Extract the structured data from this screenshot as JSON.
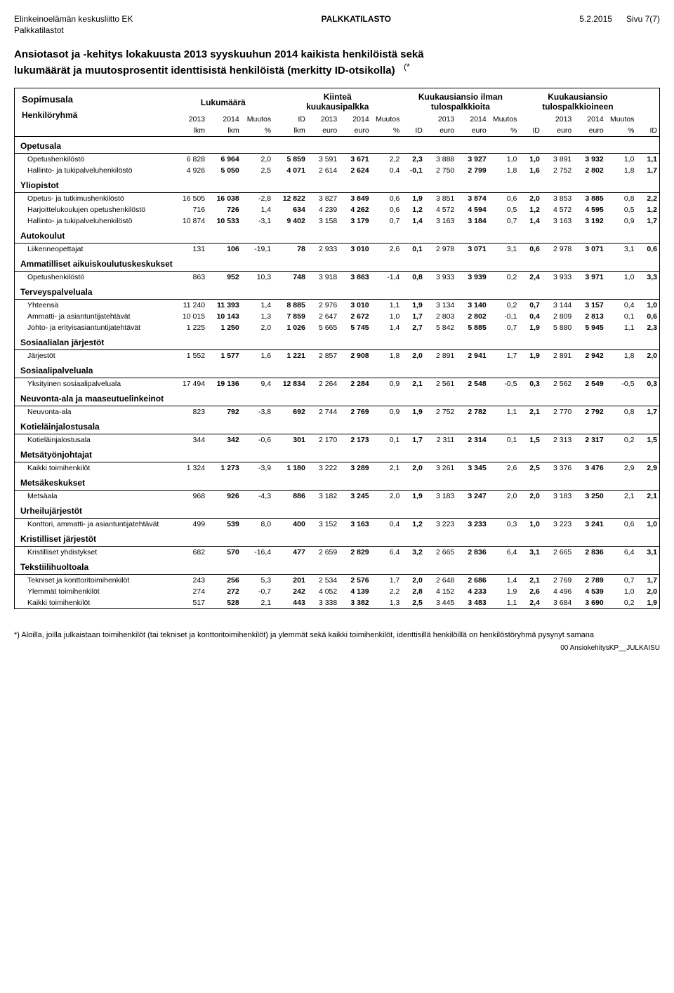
{
  "header": {
    "org": "Elinkeinoelämän keskusliitto EK",
    "center": "PALKKATILASTO",
    "date": "5.2.2015",
    "page": "Sivu 7(7)",
    "sub": "Palkkatilastot"
  },
  "title_line1": "Ansiotasot ja -kehitys lokakuusta 2013 syyskuuhun 2014 kaikista henkilöistä sekä",
  "title_line2": "lukumäärät ja muutosprosentit identtisistä henkilöistä (merkitty ID-otsikolla)",
  "title_star": "(*",
  "colheads": {
    "left1": "Sopimusala",
    "left2": "Henkilöryhmä",
    "g1": "Lukumäärä",
    "g2a": "Kiinteä",
    "g2b": "kuukausipalkka",
    "g3a": "Kuukausiansio ilman",
    "g3b": "tulospalkkioita",
    "g4a": "Kuukausiansio",
    "g4b": "tulospalkkioineen",
    "y2013": "2013",
    "y2014": "2014",
    "lkm": "lkm",
    "muutos": "Muutos",
    "pct": "%",
    "idlkm_a": "ID",
    "idlkm_b": "lkm",
    "euro": "euro",
    "id": "ID"
  },
  "sections": [
    {
      "name": "Opetusala",
      "rows": [
        {
          "label": "Opetushenkilöstö",
          "v": [
            "6 828",
            "6 964",
            "2,0",
            "5 859",
            "3 591",
            "3 671",
            "2,2",
            "2,3",
            "3 888",
            "3 927",
            "1,0",
            "1,0",
            "3 891",
            "3 932",
            "1,0",
            "1,1"
          ]
        },
        {
          "label": "Hallinto- ja tukipalveluhenkilöstö",
          "v": [
            "4 926",
            "5 050",
            "2,5",
            "4 071",
            "2 614",
            "2 624",
            "0,4",
            "-0,1",
            "2 750",
            "2 799",
            "1,8",
            "1,6",
            "2 752",
            "2 802",
            "1,8",
            "1,7"
          ]
        }
      ]
    },
    {
      "name": "Yliopistot",
      "rows": [
        {
          "label": "Opetus- ja tutkimushenkilöstö",
          "v": [
            "16 505",
            "16 038",
            "-2,8",
            "12 822",
            "3 827",
            "3 849",
            "0,6",
            "1,9",
            "3 851",
            "3 874",
            "0,6",
            "2,0",
            "3 853",
            "3 885",
            "0,8",
            "2,2"
          ]
        },
        {
          "label": "Harjoittelukoulujen opetushenkilöstö",
          "v": [
            "716",
            "726",
            "1,4",
            "634",
            "4 239",
            "4 262",
            "0,6",
            "1,2",
            "4 572",
            "4 594",
            "0,5",
            "1,2",
            "4 572",
            "4 595",
            "0,5",
            "1,2"
          ]
        },
        {
          "label": "Hallinto- ja tukipalveluhenkilöstö",
          "v": [
            "10 874",
            "10 533",
            "-3,1",
            "9 402",
            "3 158",
            "3 179",
            "0,7",
            "1,4",
            "3 163",
            "3 184",
            "0,7",
            "1,4",
            "3 163",
            "3 192",
            "0,9",
            "1,7"
          ]
        }
      ]
    },
    {
      "name": "Autokoulut",
      "rows": [
        {
          "label": "Liikenneopettajat",
          "v": [
            "131",
            "106",
            "-19,1",
            "78",
            "2 933",
            "3 010",
            "2,6",
            "0,1",
            "2 978",
            "3 071",
            "3,1",
            "0,6",
            "2 978",
            "3 071",
            "3,1",
            "0,6"
          ]
        }
      ]
    },
    {
      "name": "Ammatilliset aikuiskoulutuskeskukset",
      "rows": [
        {
          "label": "Opetushenkilöstö",
          "v": [
            "863",
            "952",
            "10,3",
            "748",
            "3 918",
            "3 863",
            "-1,4",
            "0,8",
            "3 933",
            "3 939",
            "0,2",
            "2,4",
            "3 933",
            "3 971",
            "1,0",
            "3,3"
          ]
        }
      ]
    },
    {
      "name": "Terveyspalveluala",
      "rows": [
        {
          "label": "Yhteensä",
          "v": [
            "11 240",
            "11 393",
            "1,4",
            "8 885",
            "2 976",
            "3 010",
            "1,1",
            "1,9",
            "3 134",
            "3 140",
            "0,2",
            "0,7",
            "3 144",
            "3 157",
            "0,4",
            "1,0"
          ]
        },
        {
          "label": "Ammatti- ja asiantuntijatehtävät",
          "v": [
            "10 015",
            "10 143",
            "1,3",
            "7 859",
            "2 647",
            "2 672",
            "1,0",
            "1,7",
            "2 803",
            "2 802",
            "-0,1",
            "0,4",
            "2 809",
            "2 813",
            "0,1",
            "0,6"
          ]
        },
        {
          "label": "Johto- ja erityisasiantuntijatehtävät",
          "v": [
            "1 225",
            "1 250",
            "2,0",
            "1 026",
            "5 665",
            "5 745",
            "1,4",
            "2,7",
            "5 842",
            "5 885",
            "0,7",
            "1,9",
            "5 880",
            "5 945",
            "1,1",
            "2,3"
          ]
        }
      ]
    },
    {
      "name": "Sosiaalialan järjestöt",
      "rows": [
        {
          "label": "Järjestöt",
          "v": [
            "1 552",
            "1 577",
            "1,6",
            "1 221",
            "2 857",
            "2 908",
            "1,8",
            "2,0",
            "2 891",
            "2 941",
            "1,7",
            "1,9",
            "2 891",
            "2 942",
            "1,8",
            "2,0"
          ]
        }
      ]
    },
    {
      "name": "Sosiaalipalveluala",
      "rows": [
        {
          "label": "Yksityinen sosiaalipalveluala",
          "v": [
            "17 494",
            "19 136",
            "9,4",
            "12 834",
            "2 264",
            "2 284",
            "0,9",
            "2,1",
            "2 561",
            "2 548",
            "-0,5",
            "0,3",
            "2 562",
            "2 549",
            "-0,5",
            "0,3"
          ]
        }
      ]
    },
    {
      "name": "Neuvonta-ala ja maaseutuelinkeinot",
      "rows": [
        {
          "label": "Neuvonta-ala",
          "v": [
            "823",
            "792",
            "-3,8",
            "692",
            "2 744",
            "2 769",
            "0,9",
            "1,9",
            "2 752",
            "2 782",
            "1,1",
            "2,1",
            "2 770",
            "2 792",
            "0,8",
            "1,7"
          ]
        }
      ]
    },
    {
      "name": "Kotieläinjalostusala",
      "rows": [
        {
          "label": "Kotieläinjalostusala",
          "v": [
            "344",
            "342",
            "-0,6",
            "301",
            "2 170",
            "2 173",
            "0,1",
            "1,7",
            "2 311",
            "2 314",
            "0,1",
            "1,5",
            "2 313",
            "2 317",
            "0,2",
            "1,5"
          ]
        }
      ]
    },
    {
      "name": "Metsätyönjohtajat",
      "rows": [
        {
          "label": "Kaikki toimihenkilöt",
          "v": [
            "1 324",
            "1 273",
            "-3,9",
            "1 180",
            "3 222",
            "3 289",
            "2,1",
            "2,0",
            "3 261",
            "3 345",
            "2,6",
            "2,5",
            "3 376",
            "3 476",
            "2,9",
            "2,9"
          ]
        }
      ]
    },
    {
      "name": "Metsäkeskukset",
      "rows": [
        {
          "label": "Metsäala",
          "v": [
            "968",
            "926",
            "-4,3",
            "886",
            "3 182",
            "3 245",
            "2,0",
            "1,9",
            "3 183",
            "3 247",
            "2,0",
            "2,0",
            "3 183",
            "3 250",
            "2,1",
            "2,1"
          ]
        }
      ]
    },
    {
      "name": "Urheilujärjestöt",
      "rows": [
        {
          "label": "Konttori, ammatti- ja asiantuntijatehtävät",
          "v": [
            "499",
            "539",
            "8,0",
            "400",
            "3 152",
            "3 163",
            "0,4",
            "1,2",
            "3 223",
            "3 233",
            "0,3",
            "1,0",
            "3 223",
            "3 241",
            "0,6",
            "1,0"
          ]
        }
      ]
    },
    {
      "name": "Kristilliset järjestöt",
      "rows": [
        {
          "label": "Kristilliset yhdistykset",
          "v": [
            "682",
            "570",
            "-16,4",
            "477",
            "2 659",
            "2 829",
            "6,4",
            "3,2",
            "2 665",
            "2 836",
            "6,4",
            "3,1",
            "2 665",
            "2 836",
            "6,4",
            "3,1"
          ]
        }
      ]
    },
    {
      "name": "Tekstiilihuoltoala",
      "rows": [
        {
          "label": "Tekniset ja konttoritoimihenkilöt",
          "v": [
            "243",
            "256",
            "5,3",
            "201",
            "2 534",
            "2 576",
            "1,7",
            "2,0",
            "2 648",
            "2 686",
            "1,4",
            "2,1",
            "2 769",
            "2 789",
            "0,7",
            "1,7"
          ]
        },
        {
          "label": "Ylemmät toimihenkilöt",
          "v": [
            "274",
            "272",
            "-0,7",
            "242",
            "4 052",
            "4 139",
            "2,2",
            "2,8",
            "4 152",
            "4 233",
            "1,9",
            "2,6",
            "4 496",
            "4 539",
            "1,0",
            "2,0"
          ]
        },
        {
          "label": "Kaikki toimihenkilöt",
          "v": [
            "517",
            "528",
            "2,1",
            "443",
            "3 338",
            "3 382",
            "1,3",
            "2,5",
            "3 445",
            "3 483",
            "1,1",
            "2,4",
            "3 684",
            "3 690",
            "0,2",
            "1,9"
          ]
        }
      ]
    }
  ],
  "bold_cols": [
    1,
    3,
    5,
    7,
    9,
    11,
    13,
    15
  ],
  "footnote": "*) Aloilla, joilla julkaistaan toimihenkilöt (tai tekniset ja konttoritoimihenkilöt) ja ylemmät sekä kaikki toimihenkilöt, identtisillä henkilöillä on henkilöstöryhmä pysynyt samana",
  "pubcode": "00 AnsiokehitysKP__JULKAISU"
}
